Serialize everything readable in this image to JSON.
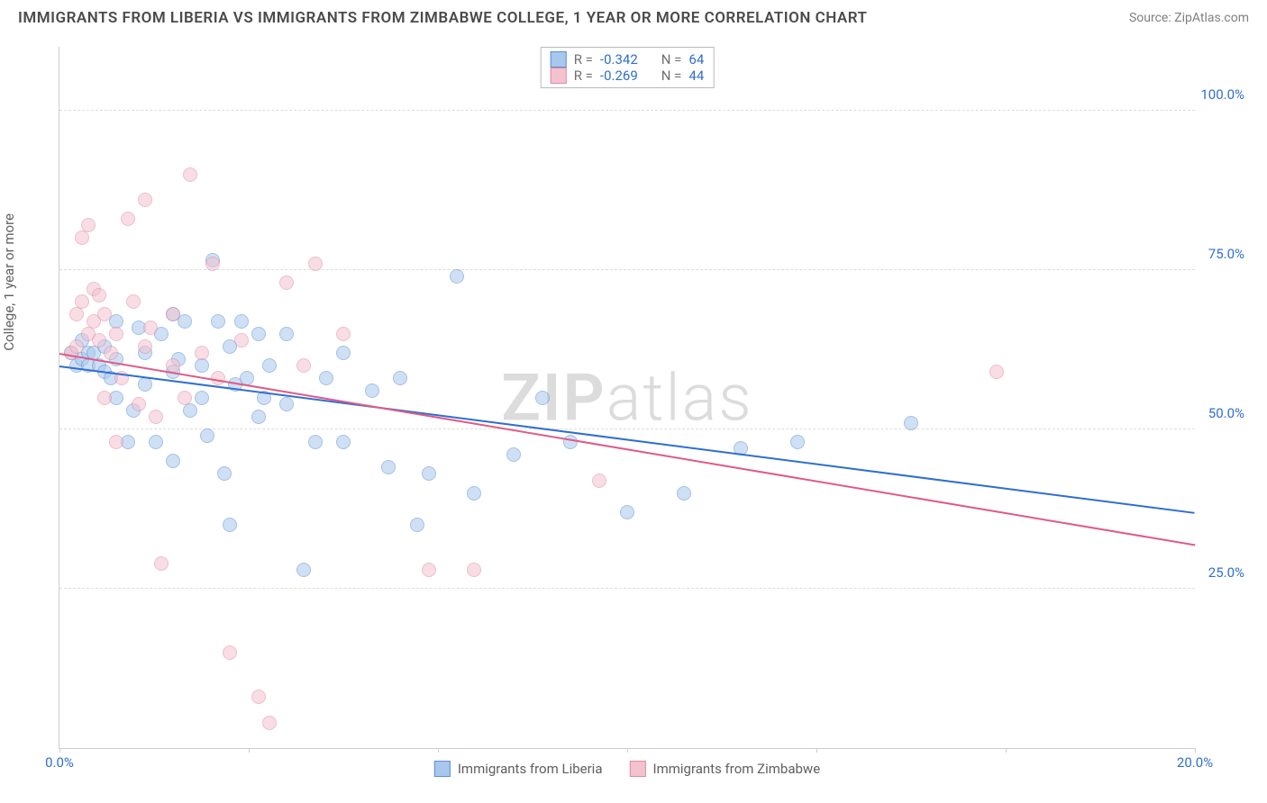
{
  "title": "IMMIGRANTS FROM LIBERIA VS IMMIGRANTS FROM ZIMBABWE COLLEGE, 1 YEAR OR MORE CORRELATION CHART",
  "source": "Source: ZipAtlas.com",
  "watermark_a": "ZIP",
  "watermark_b": "atlas",
  "chart": {
    "type": "scatter",
    "ylabel": "College, 1 year or more",
    "xlim": [
      0,
      20
    ],
    "ylim": [
      0,
      110
    ],
    "xtick_labels": [
      "0.0%",
      "20.0%"
    ],
    "xtick_positions": [
      0,
      20
    ],
    "xtick_marks": [
      0,
      3.33,
      6.67,
      10,
      13.33,
      16.67,
      20
    ],
    "ytick_labels": [
      "25.0%",
      "50.0%",
      "75.0%",
      "100.0%"
    ],
    "ytick_positions": [
      25,
      50,
      75,
      100
    ],
    "xtick_color": "#2f6fd0",
    "ytick_color": "#2f6fd0",
    "grid_color": "#dddddd",
    "background_color": "#ffffff",
    "point_radius": 8,
    "point_opacity": 0.55,
    "series": [
      {
        "name": "Immigrants from Liberia",
        "color_fill": "#a8c7ec",
        "color_stroke": "#5a8fd6",
        "R": "-0.342",
        "N": "64",
        "trend": {
          "x1": 0,
          "y1": 60,
          "x2": 20,
          "y2": 37,
          "color": "#2f6fd0",
          "width": 2
        },
        "points": [
          [
            0.2,
            62
          ],
          [
            0.3,
            60
          ],
          [
            0.4,
            61
          ],
          [
            0.5,
            62
          ],
          [
            0.5,
            60
          ],
          [
            0.6,
            62
          ],
          [
            0.7,
            60
          ],
          [
            0.8,
            63
          ],
          [
            0.8,
            59
          ],
          [
            1.0,
            67
          ],
          [
            1.0,
            55
          ],
          [
            1.2,
            48
          ],
          [
            1.3,
            53
          ],
          [
            1.5,
            57
          ],
          [
            1.5,
            62
          ],
          [
            1.7,
            48
          ],
          [
            1.8,
            65
          ],
          [
            2.0,
            68
          ],
          [
            2.0,
            59
          ],
          [
            2.0,
            45
          ],
          [
            2.2,
            67
          ],
          [
            2.3,
            53
          ],
          [
            2.5,
            60
          ],
          [
            2.5,
            55
          ],
          [
            2.7,
            76.5
          ],
          [
            2.8,
            67
          ],
          [
            2.9,
            43
          ],
          [
            3.0,
            63
          ],
          [
            3.0,
            35
          ],
          [
            3.2,
            67
          ],
          [
            3.3,
            58
          ],
          [
            3.5,
            65
          ],
          [
            3.5,
            52
          ],
          [
            3.7,
            60
          ],
          [
            4.0,
            65
          ],
          [
            4.0,
            54
          ],
          [
            4.3,
            28
          ],
          [
            4.5,
            48
          ],
          [
            4.7,
            58
          ],
          [
            5.0,
            62
          ],
          [
            5.0,
            48
          ],
          [
            5.5,
            56
          ],
          [
            5.8,
            44
          ],
          [
            6.0,
            58
          ],
          [
            6.3,
            35
          ],
          [
            6.5,
            43
          ],
          [
            7.0,
            74
          ],
          [
            7.3,
            40
          ],
          [
            8.0,
            46
          ],
          [
            8.5,
            55
          ],
          [
            9.0,
            48
          ],
          [
            10.0,
            37
          ],
          [
            11.0,
            40
          ],
          [
            12.0,
            47
          ],
          [
            13.0,
            48
          ],
          [
            15.0,
            51
          ],
          [
            1.0,
            61
          ],
          [
            1.4,
            66
          ],
          [
            2.1,
            61
          ],
          [
            2.6,
            49
          ],
          [
            3.1,
            57
          ],
          [
            3.6,
            55
          ],
          [
            0.9,
            58
          ],
          [
            0.4,
            64
          ]
        ]
      },
      {
        "name": "Immigrants from Zimbabwe",
        "color_fill": "#f3c2cf",
        "color_stroke": "#e18aa3",
        "R": "-0.269",
        "N": "44",
        "trend": {
          "x1": 0,
          "y1": 62,
          "x2": 20,
          "y2": 32,
          "color": "#e05a87",
          "width": 2
        },
        "points": [
          [
            0.2,
            62
          ],
          [
            0.3,
            68
          ],
          [
            0.4,
            70
          ],
          [
            0.5,
            65
          ],
          [
            0.5,
            82
          ],
          [
            0.6,
            72
          ],
          [
            0.7,
            64
          ],
          [
            0.8,
            68
          ],
          [
            0.8,
            55
          ],
          [
            1.0,
            65
          ],
          [
            1.0,
            48
          ],
          [
            1.2,
            83
          ],
          [
            1.3,
            70
          ],
          [
            1.5,
            86
          ],
          [
            1.5,
            63
          ],
          [
            1.7,
            52
          ],
          [
            1.8,
            29
          ],
          [
            2.0,
            68
          ],
          [
            2.0,
            60
          ],
          [
            2.3,
            90
          ],
          [
            2.5,
            62
          ],
          [
            2.7,
            76
          ],
          [
            3.0,
            15
          ],
          [
            3.2,
            64
          ],
          [
            3.5,
            8
          ],
          [
            3.7,
            4
          ],
          [
            4.0,
            73
          ],
          [
            4.3,
            60
          ],
          [
            4.5,
            76
          ],
          [
            5.0,
            65
          ],
          [
            6.5,
            28
          ],
          [
            7.3,
            28
          ],
          [
            9.5,
            42
          ],
          [
            16.5,
            59
          ],
          [
            0.4,
            80
          ],
          [
            0.6,
            67
          ],
          [
            0.9,
            62
          ],
          [
            1.1,
            58
          ],
          [
            1.4,
            54
          ],
          [
            1.6,
            66
          ],
          [
            2.2,
            55
          ],
          [
            2.8,
            58
          ],
          [
            0.3,
            63
          ],
          [
            0.7,
            71
          ]
        ]
      }
    ],
    "stats_label_R": "R =",
    "stats_label_N": "N =",
    "stats_value_color": "#2f6fd0",
    "stats_label_color": "#707070",
    "legend_text_color": "#606060"
  }
}
